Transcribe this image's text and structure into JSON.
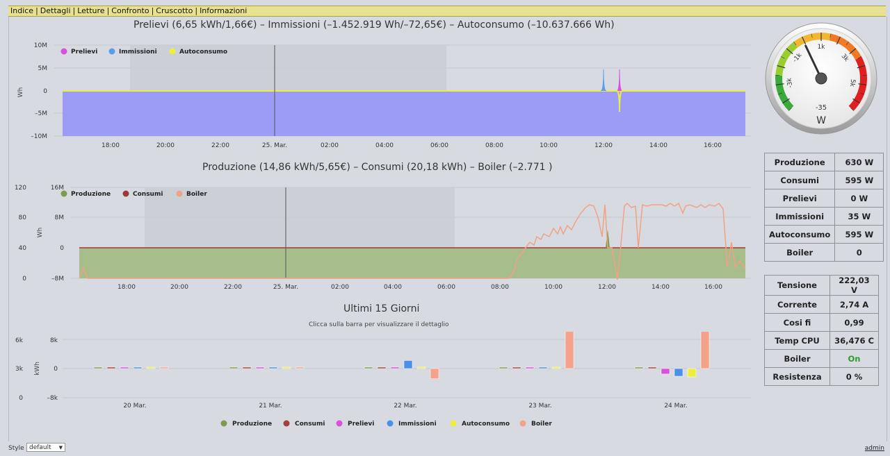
{
  "nav": {
    "items": [
      "Indice",
      "Dettagli",
      "Letture",
      "Confronto",
      "Cruscotto",
      "Informazioni"
    ]
  },
  "chart1": {
    "title": "Prelievi (6,65 kWh/1,66€) – Immissioni (–1.452.919 Wh/–72,65€) – Autoconsumo (–10.637.666 Wh)",
    "ylabel": "Wh",
    "yticks": [
      "10M",
      "5M",
      "0",
      "–5M",
      "–10M"
    ],
    "xticks": [
      "18:00",
      "20:00",
      "22:00",
      "25. Mar.",
      "02:00",
      "04:00",
      "06:00",
      "08:00",
      "10:00",
      "12:00",
      "14:00",
      "16:00"
    ],
    "legend": [
      {
        "name": "Prelievi",
        "color": "#d94fe0"
      },
      {
        "name": "Immissioni",
        "color": "#5a9ded"
      },
      {
        "name": "Autoconsumo",
        "color": "#ecee3c"
      }
    ]
  },
  "chart2": {
    "title": "Produzione (14,86 kWh/5,65€) – Consumi (20,18 kWh) – Boiler (–2.771 )",
    "ylabel": "Wh",
    "yticks_left": [
      "120",
      "80",
      "40",
      "0"
    ],
    "yticks_right": [
      "16M",
      "8M",
      "0",
      "–8M"
    ],
    "xticks": [
      "18:00",
      "20:00",
      "22:00",
      "25. Mar.",
      "02:00",
      "04:00",
      "06:00",
      "08:00",
      "10:00",
      "12:00",
      "14:00",
      "16:00"
    ],
    "legend": [
      {
        "name": "Produzione",
        "color": "#7e9a4a"
      },
      {
        "name": "Consumi",
        "color": "#9e3a36"
      },
      {
        "name": "Boiler",
        "color": "#f0a287"
      }
    ]
  },
  "chart3": {
    "title": "Ultimi 15 Giorni",
    "subtitle": "Clicca sulla barra per visualizzare il dettaglio",
    "ylabel": "kWh",
    "yticks_left": [
      "6k",
      "3k",
      "0"
    ],
    "yticks_right": [
      "8k",
      "0",
      "–8k"
    ],
    "legend": [
      {
        "name": "Produzione",
        "color": "#7e9a4a"
      },
      {
        "name": "Consumi",
        "color": "#a83e3a"
      },
      {
        "name": "Prelievi",
        "color": "#d94fe0"
      },
      {
        "name": "Immissioni",
        "color": "#4a90e6"
      },
      {
        "name": "Autoconsumo",
        "color": "#ecee3c"
      },
      {
        "name": "Boiler",
        "color": "#f4a38a"
      }
    ]
  },
  "chart_data": [
    {
      "type": "area",
      "title": "Prelievi (6,65 kWh/1,66€) – Immissioni (–1.452.919 Wh/–72,65€) – Autoconsumo (–10.637.666 Wh)",
      "ylabel": "Wh",
      "ylim": [
        -10000000,
        10000000
      ],
      "x": [
        "16:45",
        "18:00",
        "20:00",
        "22:00",
        "25. Mar.",
        "02:00",
        "04:00",
        "06:00",
        "08:00",
        "10:00",
        "12:00",
        "12:35",
        "14:00",
        "16:00",
        "16:45"
      ],
      "series": [
        {
          "name": "Prelievi",
          "values": [
            0,
            0,
            0,
            0,
            0,
            0,
            0,
            0,
            0,
            0,
            0,
            4500000,
            0,
            0,
            0
          ]
        },
        {
          "name": "Immissioni",
          "values": [
            -10000000,
            -10000000,
            -10000000,
            -10000000,
            -10000000,
            -10000000,
            -10000000,
            -10000000,
            -10000000,
            -10000000,
            -10000000,
            -10000000,
            -10000000,
            -10000000,
            -10000000
          ]
        },
        {
          "name": "Autoconsumo",
          "values": [
            0,
            0,
            0,
            0,
            0,
            0,
            0,
            0,
            0,
            0,
            0,
            -4500000,
            0,
            0,
            0
          ]
        }
      ],
      "legend": "top-left",
      "grid": true
    },
    {
      "type": "line",
      "title": "Produzione (14,86 kWh/5,65€) – Consumi (20,18 kWh) – Boiler (–2.771 )",
      "ylabel": "Wh",
      "ylim": [
        0,
        120
      ],
      "y2lim": [
        -8000000,
        16000000
      ],
      "series": [
        {
          "name": "Produzione",
          "values": [
            0,
            0,
            0,
            0,
            0,
            0,
            0,
            0,
            0,
            0,
            0,
            0,
            0,
            0,
            0
          ]
        },
        {
          "name": "Consumi",
          "values": [
            0,
            0,
            0,
            0,
            0,
            0,
            0,
            0,
            0,
            0,
            0,
            0,
            0,
            0,
            0
          ]
        },
        {
          "name": "Boiler",
          "values": [
            0,
            0,
            0,
            0,
            0,
            0,
            0,
            0,
            20,
            45,
            70,
            95,
            95,
            92,
            10
          ]
        }
      ],
      "legend": "top-left",
      "grid": true
    },
    {
      "type": "bar",
      "title": "Ultimi 15 Giorni",
      "categories": [
        "20 Mar.",
        "21 Mar.",
        "22 Mar.",
        "23 Mar.",
        "24 Mar."
      ],
      "ylabel": "kWh",
      "series": [
        {
          "name": "Produzione",
          "values": [
            0,
            0,
            0,
            0,
            0
          ]
        },
        {
          "name": "Consumi",
          "values": [
            0,
            0,
            0,
            0,
            0
          ]
        },
        {
          "name": "Prelievi",
          "values": [
            0,
            0,
            0,
            0,
            -1500
          ]
        },
        {
          "name": "Immissioni",
          "values": [
            0,
            0,
            2200,
            0,
            -2100
          ]
        },
        {
          "name": "Autoconsumo",
          "values": [
            0,
            0,
            0,
            0,
            -2300
          ]
        },
        {
          "name": "Boiler",
          "values": [
            0,
            0,
            -2800,
            14000,
            16000
          ]
        }
      ],
      "legend": "bottom"
    }
  ],
  "gauge": {
    "value": "-35",
    "unit": "W",
    "needle_value": -35,
    "ticks": [
      {
        "label": "-3k",
        "value": -3000
      },
      {
        "label": "-1k",
        "value": -1000
      },
      {
        "label": "1k",
        "value": 1000
      },
      {
        "label": "3k",
        "value": 3000
      },
      {
        "label": "5k",
        "value": 5000
      }
    ]
  },
  "stats1": [
    {
      "label": "Produzione",
      "value": "630 W"
    },
    {
      "label": "Consumi",
      "value": "595 W"
    },
    {
      "label": "Prelievi",
      "value": "0 W"
    },
    {
      "label": "Immissioni",
      "value": "35 W"
    },
    {
      "label": "Autoconsumo",
      "value": "595 W"
    },
    {
      "label": "Boiler",
      "value": "0"
    }
  ],
  "stats2": [
    {
      "label": "Tensione",
      "value": "222,03 V"
    },
    {
      "label": "Corrente",
      "value": "2,74 A"
    },
    {
      "label": "Cosi fi",
      "value": "0,99"
    },
    {
      "label": "Temp CPU",
      "value": "36,476 C"
    },
    {
      "label": "Boiler",
      "value": "On"
    },
    {
      "label": "Resistenza",
      "value": "0 %"
    }
  ],
  "footer": {
    "style_label": "Style :",
    "style_value": "default",
    "admin": "admin"
  }
}
